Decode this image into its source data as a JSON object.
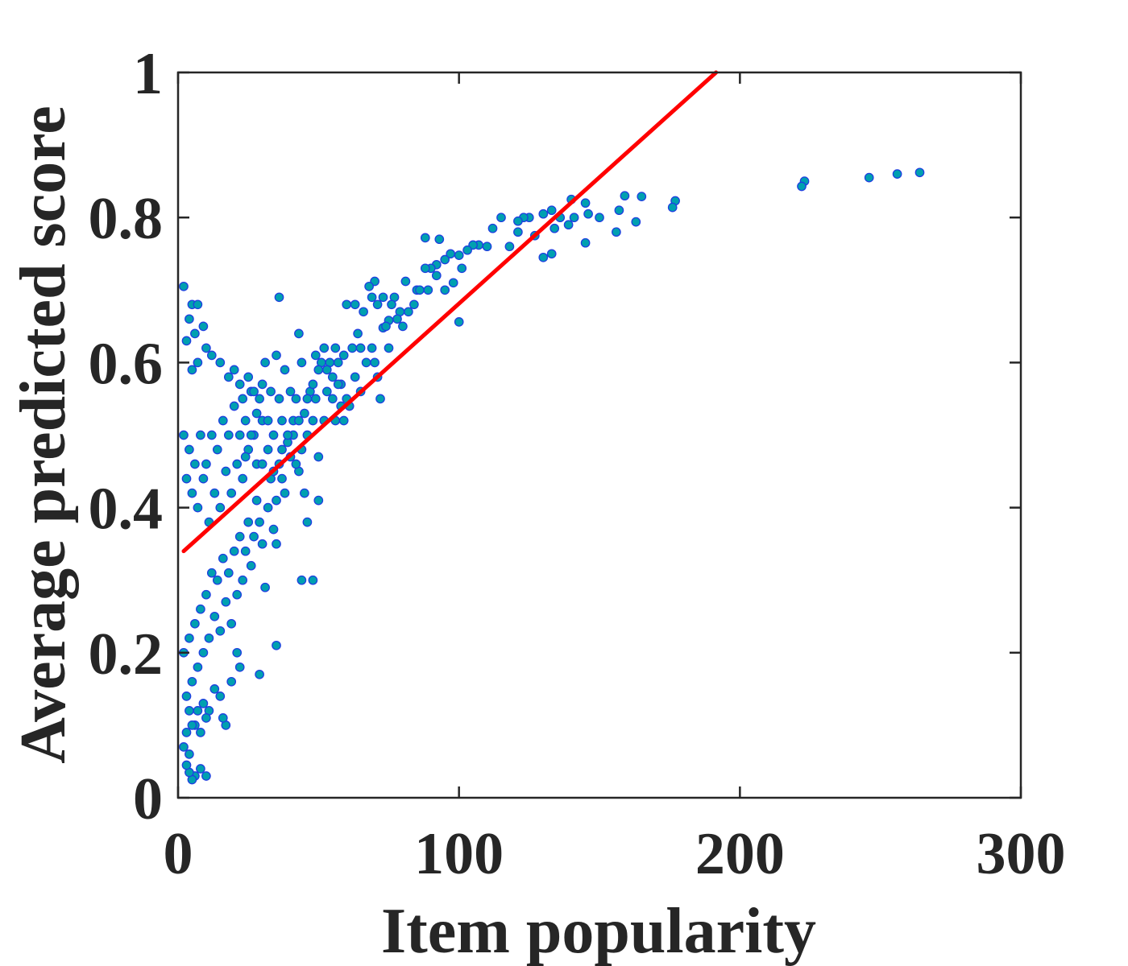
{
  "chart_data": {
    "type": "scatter",
    "title": "",
    "xlabel": "Item popularity",
    "ylabel": "Average predicted score",
    "xlim": [
      0,
      300
    ],
    "ylim": [
      0,
      1
    ],
    "xticks": [
      0,
      100,
      200,
      300
    ],
    "xtick_labels": [
      "0",
      "100",
      "200",
      "300"
    ],
    "yticks": [
      0,
      0.2,
      0.4,
      0.6,
      0.8,
      1
    ],
    "ytick_labels": [
      "0",
      "0.2",
      "0.4",
      "0.6",
      "0.8",
      "1"
    ],
    "grid": false,
    "legend": "none",
    "box": true,
    "marker_fill": "#00A0B0",
    "marker_edge": "#1F3FE0",
    "fit_color": "#FF0000",
    "axis_color": "#262626",
    "fit_line": {
      "x": [
        2,
        191.5
      ],
      "y": [
        0.34,
        1.0
      ]
    },
    "series": [
      {
        "points": [
          [
            264,
            0.862
          ],
          [
            256,
            0.86
          ],
          [
            246,
            0.855
          ],
          [
            223,
            0.85
          ],
          [
            222,
            0.843
          ],
          [
            177,
            0.823
          ],
          [
            176,
            0.814
          ],
          [
            165,
            0.829
          ],
          [
            163,
            0.794
          ],
          [
            159,
            0.83
          ],
          [
            157,
            0.81
          ],
          [
            156,
            0.78
          ],
          [
            150,
            0.8
          ],
          [
            146,
            0.805
          ],
          [
            145,
            0.82
          ],
          [
            145,
            0.765
          ],
          [
            141,
            0.8
          ],
          [
            140,
            0.825
          ],
          [
            139,
            0.79
          ],
          [
            136,
            0.8
          ],
          [
            134,
            0.785
          ],
          [
            133,
            0.81
          ],
          [
            130,
            0.805
          ],
          [
            133,
            0.75
          ],
          [
            130,
            0.745
          ],
          [
            127,
            0.775
          ],
          [
            125,
            0.8
          ],
          [
            123,
            0.8
          ],
          [
            121,
            0.795
          ],
          [
            121,
            0.78
          ],
          [
            118,
            0.76
          ],
          [
            115,
            0.8
          ],
          [
            112,
            0.785
          ],
          [
            110,
            0.76
          ],
          [
            107,
            0.762
          ],
          [
            105,
            0.762
          ],
          [
            103,
            0.755
          ],
          [
            101,
            0.73
          ],
          [
            100,
            0.748
          ],
          [
            100,
            0.656
          ],
          [
            97,
            0.75
          ],
          [
            95,
            0.742
          ],
          [
            93,
            0.77
          ],
          [
            92,
            0.735
          ],
          [
            90,
            0.73
          ],
          [
            88,
            0.772
          ],
          [
            88,
            0.73
          ],
          [
            85,
            0.7
          ],
          [
            81,
            0.712
          ],
          [
            79,
            0.67
          ],
          [
            77,
            0.69
          ],
          [
            75,
            0.658
          ],
          [
            73,
            0.69
          ],
          [
            73,
            0.648
          ],
          [
            71,
            0.68
          ],
          [
            70,
            0.712
          ],
          [
            69,
            0.69
          ],
          [
            68,
            0.705
          ],
          [
            66,
            0.67
          ],
          [
            64,
            0.64
          ],
          [
            63,
            0.68
          ],
          [
            62,
            0.62
          ],
          [
            60,
            0.68
          ],
          [
            59,
            0.61
          ],
          [
            58,
            0.57
          ],
          [
            57,
            0.6
          ],
          [
            56,
            0.62
          ],
          [
            55,
            0.58
          ],
          [
            54,
            0.6
          ],
          [
            53,
            0.56
          ],
          [
            52,
            0.52
          ],
          [
            51,
            0.6
          ],
          [
            50,
            0.59
          ],
          [
            49,
            0.55
          ],
          [
            48,
            0.52
          ],
          [
            47,
            0.56
          ],
          [
            46,
            0.5
          ],
          [
            45,
            0.53
          ],
          [
            44,
            0.6
          ],
          [
            43,
            0.64
          ],
          [
            42,
            0.55
          ],
          [
            41,
            0.5
          ],
          [
            40,
            0.56
          ],
          [
            38,
            0.59
          ],
          [
            37,
            0.52
          ],
          [
            36,
            0.55
          ],
          [
            35,
            0.61
          ],
          [
            34,
            0.5
          ],
          [
            33,
            0.56
          ],
          [
            32,
            0.48
          ],
          [
            31,
            0.6
          ],
          [
            30,
            0.52
          ],
          [
            29,
            0.55
          ],
          [
            28,
            0.46
          ],
          [
            27,
            0.5
          ],
          [
            26,
            0.56
          ],
          [
            25,
            0.48
          ],
          [
            24,
            0.52
          ],
          [
            23,
            0.44
          ],
          [
            22,
            0.5
          ],
          [
            21,
            0.46
          ],
          [
            20,
            0.54
          ],
          [
            19,
            0.42
          ],
          [
            18,
            0.5
          ],
          [
            17,
            0.45
          ],
          [
            16,
            0.52
          ],
          [
            15,
            0.4
          ],
          [
            14,
            0.48
          ],
          [
            13,
            0.42
          ],
          [
            12,
            0.5
          ],
          [
            11,
            0.38
          ],
          [
            10,
            0.46
          ],
          [
            9,
            0.44
          ],
          [
            8,
            0.5
          ],
          [
            7,
            0.4
          ],
          [
            6,
            0.46
          ],
          [
            5,
            0.42
          ],
          [
            4,
            0.48
          ],
          [
            3,
            0.44
          ],
          [
            2,
            0.5
          ],
          [
            75,
            0.62
          ],
          [
            70,
            0.6
          ],
          [
            65,
            0.56
          ],
          [
            60,
            0.55
          ],
          [
            58,
            0.54
          ],
          [
            56,
            0.52
          ],
          [
            50,
            0.47
          ],
          [
            46,
            0.38
          ],
          [
            45,
            0.42
          ],
          [
            44,
            0.3
          ],
          [
            43,
            0.45
          ],
          [
            48,
            0.3
          ],
          [
            50,
            0.41
          ],
          [
            42,
            0.46
          ],
          [
            40,
            0.47
          ],
          [
            39,
            0.49
          ],
          [
            38,
            0.42
          ],
          [
            37,
            0.44
          ],
          [
            36,
            0.69
          ],
          [
            36,
            0.46
          ],
          [
            35,
            0.41
          ],
          [
            35,
            0.35
          ],
          [
            34,
            0.37
          ],
          [
            33,
            0.44
          ],
          [
            32,
            0.4
          ],
          [
            31,
            0.29
          ],
          [
            30,
            0.35
          ],
          [
            29,
            0.38
          ],
          [
            28,
            0.41
          ],
          [
            27,
            0.36
          ],
          [
            26,
            0.32
          ],
          [
            25,
            0.38
          ],
          [
            24,
            0.34
          ],
          [
            23,
            0.3
          ],
          [
            22,
            0.36
          ],
          [
            21,
            0.28
          ],
          [
            20,
            0.34
          ],
          [
            19,
            0.24
          ],
          [
            18,
            0.31
          ],
          [
            17,
            0.27
          ],
          [
            16,
            0.33
          ],
          [
            15,
            0.23
          ],
          [
            14,
            0.3
          ],
          [
            13,
            0.25
          ],
          [
            12,
            0.31
          ],
          [
            11,
            0.22
          ],
          [
            10,
            0.28
          ],
          [
            9,
            0.2
          ],
          [
            8,
            0.26
          ],
          [
            7,
            0.18
          ],
          [
            6,
            0.24
          ],
          [
            5,
            0.16
          ],
          [
            4,
            0.22
          ],
          [
            3,
            0.14
          ],
          [
            2,
            0.2
          ],
          [
            35,
            0.21
          ],
          [
            29,
            0.17
          ],
          [
            22,
            0.18
          ],
          [
            21,
            0.2
          ],
          [
            19,
            0.16
          ],
          [
            17,
            0.1
          ],
          [
            16,
            0.11
          ],
          [
            15,
            0.14
          ],
          [
            13,
            0.15
          ],
          [
            11,
            0.12
          ],
          [
            10,
            0.11
          ],
          [
            9,
            0.13
          ],
          [
            8,
            0.09
          ],
          [
            7,
            0.12
          ],
          [
            6,
            0.1
          ],
          [
            5,
            0.1
          ],
          [
            4,
            0.12
          ],
          [
            3,
            0.09
          ],
          [
            2,
            0.07
          ],
          [
            10,
            0.03
          ],
          [
            8,
            0.04
          ],
          [
            6,
            0.03
          ],
          [
            5,
            0.025
          ],
          [
            4,
            0.035
          ],
          [
            3,
            0.045
          ],
          [
            4,
            0.06
          ],
          [
            2,
            0.705
          ],
          [
            5,
            0.68
          ],
          [
            7,
            0.68
          ],
          [
            4,
            0.66
          ],
          [
            9,
            0.65
          ],
          [
            6,
            0.64
          ],
          [
            3,
            0.63
          ],
          [
            12,
            0.61
          ],
          [
            10,
            0.62
          ],
          [
            7,
            0.6
          ],
          [
            5,
            0.59
          ],
          [
            15,
            0.6
          ],
          [
            18,
            0.58
          ],
          [
            20,
            0.59
          ],
          [
            22,
            0.57
          ],
          [
            25,
            0.58
          ],
          [
            23,
            0.55
          ],
          [
            27,
            0.56
          ],
          [
            30,
            0.57
          ],
          [
            28,
            0.53
          ],
          [
            32,
            0.52
          ],
          [
            26,
            0.5
          ],
          [
            24,
            0.47
          ],
          [
            30,
            0.46
          ],
          [
            34,
            0.45
          ],
          [
            37,
            0.48
          ],
          [
            39,
            0.5
          ],
          [
            41,
            0.52
          ],
          [
            43,
            0.52
          ],
          [
            44,
            0.48
          ],
          [
            46,
            0.55
          ],
          [
            48,
            0.57
          ],
          [
            49,
            0.61
          ],
          [
            52,
            0.62
          ],
          [
            53,
            0.59
          ],
          [
            55,
            0.55
          ],
          [
            57,
            0.57
          ],
          [
            59,
            0.52
          ],
          [
            61,
            0.54
          ],
          [
            63,
            0.58
          ],
          [
            65,
            0.62
          ],
          [
            67,
            0.6
          ],
          [
            69,
            0.62
          ],
          [
            71,
            0.58
          ],
          [
            72,
            0.55
          ],
          [
            74,
            0.65
          ],
          [
            76,
            0.68
          ],
          [
            78,
            0.66
          ],
          [
            80,
            0.65
          ],
          [
            82,
            0.67
          ],
          [
            84,
            0.68
          ],
          [
            86,
            0.7
          ],
          [
            89,
            0.7
          ],
          [
            92,
            0.72
          ],
          [
            95,
            0.7
          ],
          [
            98,
            0.71
          ]
        ]
      }
    ]
  }
}
